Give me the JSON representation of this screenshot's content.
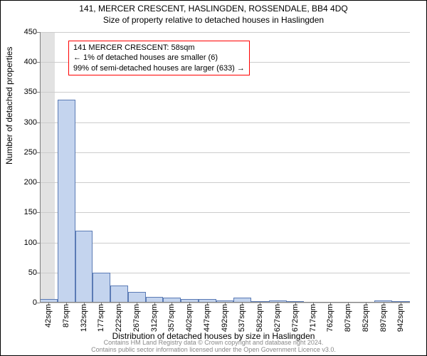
{
  "title_main": "141, MERCER CRESCENT, HASLINGDEN, ROSSENDALE, BB4 4DQ",
  "title_sub": "Size of property relative to detached houses in Haslingden",
  "y_axis_title": "Number of detached properties",
  "x_axis_title": "Distribution of detached houses by size in Haslingden",
  "annotation": {
    "line1": "141 MERCER CRESCENT: 58sqm",
    "line2": "← 1% of detached houses are smaller (6)",
    "line3": "99% of semi-detached houses are larger (633) →"
  },
  "footer": {
    "line1": "Contains HM Land Registry data © Crown copyright and database right 2024.",
    "line2": "Contains public sector information licensed under the Open Government Licence v3.0."
  },
  "chart": {
    "type": "histogram",
    "y_lim": [
      0,
      450
    ],
    "y_ticks": [
      0,
      50,
      100,
      150,
      200,
      250,
      300,
      350,
      400,
      450
    ],
    "x_ticks": [
      "42sqm",
      "87sqm",
      "132sqm",
      "177sqm",
      "222sqm",
      "267sqm",
      "312sqm",
      "357sqm",
      "402sqm",
      "447sqm",
      "492sqm",
      "537sqm",
      "582sqm",
      "627sqm",
      "672sqm",
      "717sqm",
      "762sqm",
      "807sqm",
      "852sqm",
      "897sqm",
      "942sqm"
    ],
    "x_tick_positions": [
      42,
      87,
      132,
      177,
      222,
      267,
      312,
      357,
      402,
      447,
      492,
      537,
      582,
      627,
      672,
      717,
      762,
      807,
      852,
      897,
      942
    ],
    "x_range": [
      20,
      965
    ],
    "bar_color": "#c4d4ee",
    "bar_border": "#5b7bb5",
    "highlight_color": "rgba(221,221,221,0.85)",
    "highlight_range": [
      20,
      58
    ],
    "grid_color": "#cccccc",
    "axis_color": "#808080",
    "background": "#ffffff",
    "bars": [
      {
        "x0": 20,
        "x1": 65,
        "y": 6
      },
      {
        "x0": 65,
        "x1": 110,
        "y": 338
      },
      {
        "x0": 110,
        "x1": 155,
        "y": 120
      },
      {
        "x0": 155,
        "x1": 200,
        "y": 50
      },
      {
        "x0": 200,
        "x1": 245,
        "y": 28
      },
      {
        "x0": 245,
        "x1": 290,
        "y": 18
      },
      {
        "x0": 290,
        "x1": 335,
        "y": 10
      },
      {
        "x0": 335,
        "x1": 380,
        "y": 8
      },
      {
        "x0": 380,
        "x1": 425,
        "y": 6
      },
      {
        "x0": 425,
        "x1": 470,
        "y": 6
      },
      {
        "x0": 470,
        "x1": 515,
        "y": 4
      },
      {
        "x0": 515,
        "x1": 560,
        "y": 8
      },
      {
        "x0": 560,
        "x1": 605,
        "y": 2
      },
      {
        "x0": 605,
        "x1": 650,
        "y": 4
      },
      {
        "x0": 650,
        "x1": 695,
        "y": 2
      },
      {
        "x0": 695,
        "x1": 740,
        "y": 0
      },
      {
        "x0": 740,
        "x1": 785,
        "y": 0
      },
      {
        "x0": 785,
        "x1": 830,
        "y": 0
      },
      {
        "x0": 830,
        "x1": 875,
        "y": 0
      },
      {
        "x0": 875,
        "x1": 920,
        "y": 4
      },
      {
        "x0": 920,
        "x1": 965,
        "y": 2
      }
    ]
  }
}
